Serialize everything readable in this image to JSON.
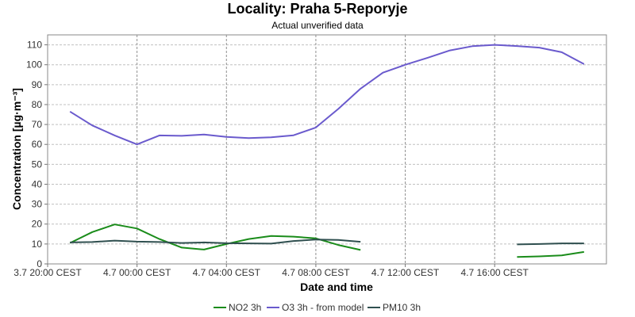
{
  "chart_data": {
    "type": "line",
    "title": "Locality: Praha 5-Reporyje",
    "subtitle": "Actual unverified data",
    "xlabel": "Date and time",
    "ylabel": "Concentration [µg·m⁻³]",
    "ylim": [
      0,
      115
    ],
    "yticks": [
      0,
      10,
      20,
      30,
      40,
      50,
      60,
      70,
      80,
      90,
      100,
      110
    ],
    "xlim": [
      "2024-07-03 20:00",
      "2024-07-04 21:00"
    ],
    "xticks": [
      {
        "t": "2024-07-03 20:00",
        "label": "3.7 20:00 CEST"
      },
      {
        "t": "2024-07-04 00:00",
        "label": "4.7 00:00 CEST"
      },
      {
        "t": "2024-07-04 04:00",
        "label": "4.7 04:00 CEST"
      },
      {
        "t": "2024-07-04 08:00",
        "label": "4.7 08:00 CEST"
      },
      {
        "t": "2024-07-04 12:00",
        "label": "4.7 12:00 CEST"
      },
      {
        "t": "2024-07-04 16:00",
        "label": "4.7 16:00 CEST"
      }
    ],
    "grid": true,
    "legend": "bottom",
    "x": [
      "2024-07-03 21:00",
      "2024-07-03 22:00",
      "2024-07-03 23:00",
      "2024-07-04 00:00",
      "2024-07-04 01:00",
      "2024-07-04 02:00",
      "2024-07-04 03:00",
      "2024-07-04 04:00",
      "2024-07-04 05:00",
      "2024-07-04 06:00",
      "2024-07-04 07:00",
      "2024-07-04 08:00",
      "2024-07-04 09:00",
      "2024-07-04 10:00",
      "2024-07-04 11:00",
      "2024-07-04 12:00",
      "2024-07-04 13:00",
      "2024-07-04 14:00",
      "2024-07-04 15:00",
      "2024-07-04 16:00",
      "2024-07-04 17:00",
      "2024-07-04 18:00",
      "2024-07-04 19:00",
      "2024-07-04 20:00"
    ],
    "series": [
      {
        "name": "NO2 3h",
        "color": "#1a8c1a",
        "values": [
          10.5,
          16,
          19.8,
          17.8,
          12.5,
          8.2,
          7.2,
          10,
          12.5,
          14,
          13.7,
          12.8,
          9.5,
          7,
          null,
          null,
          null,
          null,
          null,
          null,
          3.5,
          3.8,
          4.3,
          6.0
        ]
      },
      {
        "name": "O3 3h - from model",
        "color": "#6a5acd",
        "values": [
          76.5,
          69.5,
          64.5,
          60,
          64.5,
          64.3,
          65,
          63.8,
          63.2,
          63.6,
          64.6,
          68.5,
          77.8,
          88,
          96,
          100,
          103.5,
          107.2,
          109.3,
          110,
          109.4,
          108.6,
          106.3,
          100.3
        ]
      },
      {
        "name": "PM10 3h",
        "color": "#2f4f4f",
        "values": [
          10.8,
          11,
          11.7,
          11.2,
          11,
          10.5,
          10.8,
          10.4,
          10.3,
          10.2,
          11.5,
          12.2,
          12,
          11.1,
          null,
          null,
          null,
          null,
          null,
          null,
          9.8,
          10.0,
          10.3,
          10.3
        ]
      }
    ]
  }
}
